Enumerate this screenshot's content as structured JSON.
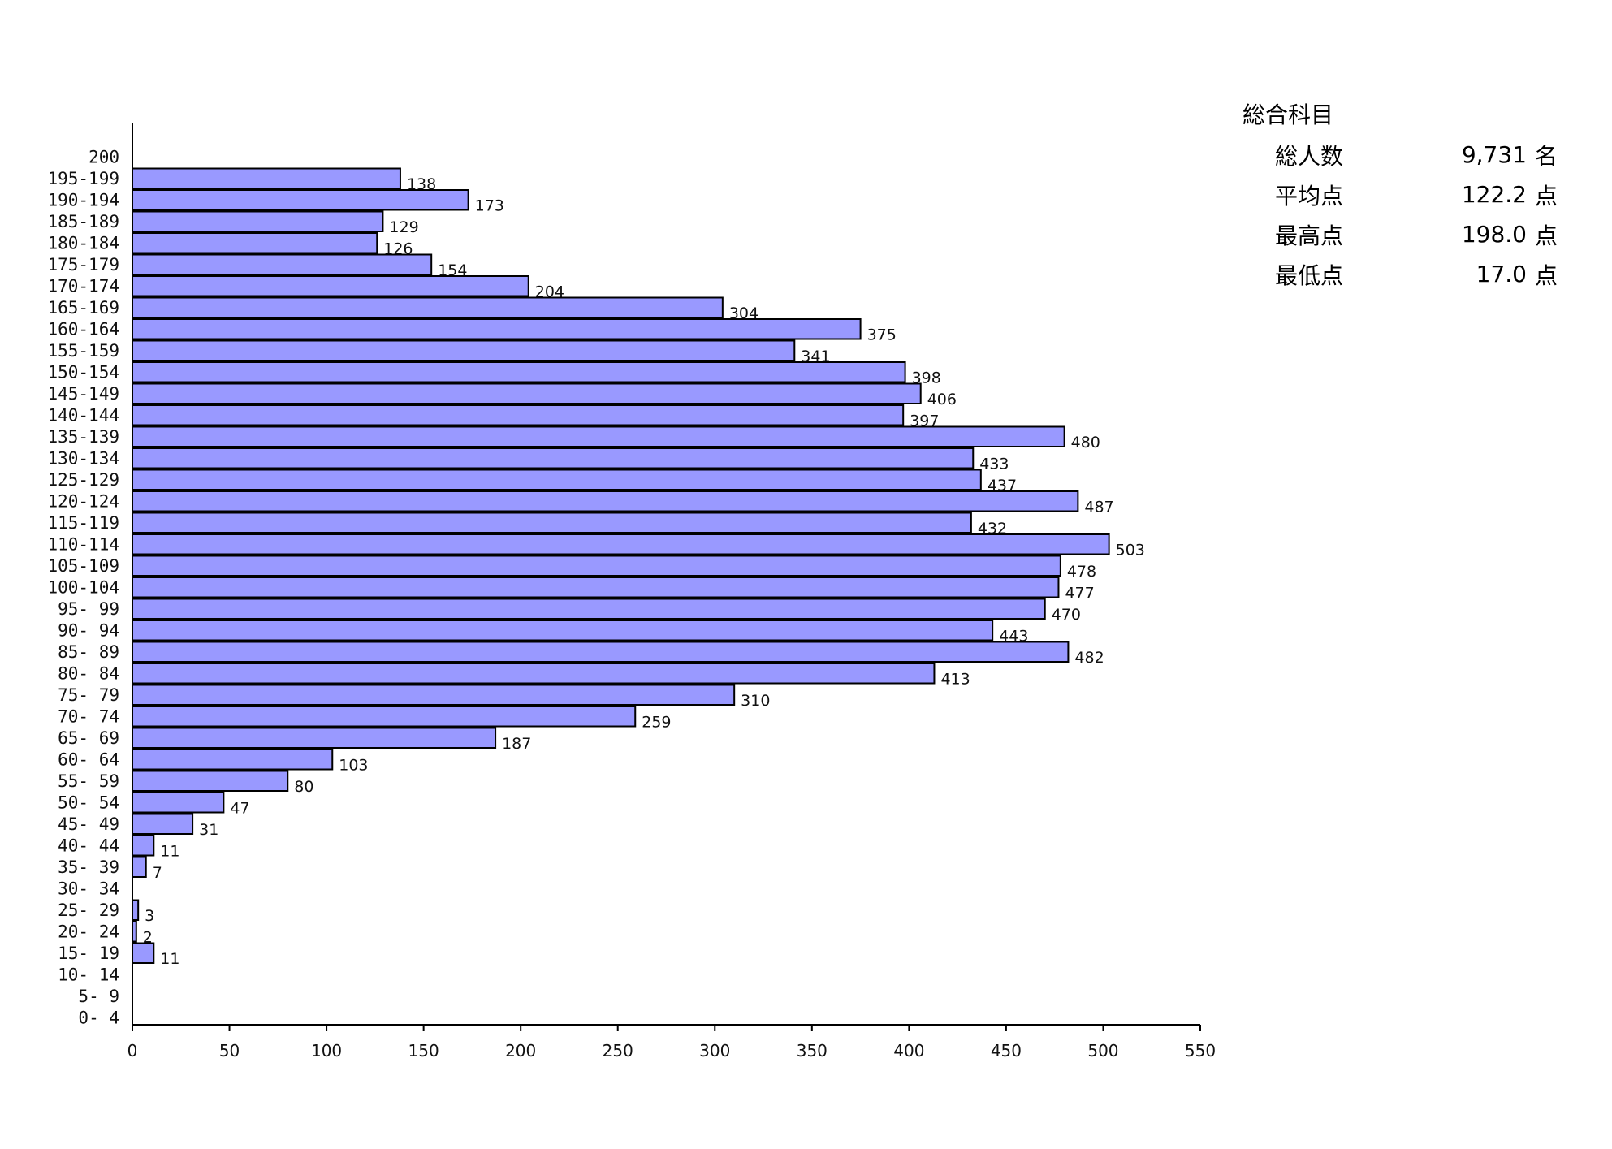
{
  "chart_data": {
    "type": "bar",
    "orientation": "horizontal",
    "title": "",
    "xlabel": "",
    "ylabel": "",
    "xlim": [
      0,
      550
    ],
    "x_ticks": [
      "0",
      "50",
      "100",
      "150",
      "200",
      "250",
      "300",
      "350",
      "400",
      "450",
      "500",
      "550"
    ],
    "grid": false,
    "categories": [
      "200",
      "195-199",
      "190-194",
      "185-189",
      "180-184",
      "175-179",
      "170-174",
      "165-169",
      "160-164",
      "155-159",
      "150-154",
      "145-149",
      "140-144",
      "135-139",
      "130-134",
      "125-129",
      "120-124",
      "115-119",
      "110-114",
      "105-109",
      "100-104",
      "95- 99",
      "90- 94",
      "85- 89",
      "80- 84",
      "75- 79",
      "70- 74",
      "65- 69",
      "60- 64",
      "55- 59",
      "50- 54",
      "45- 49",
      "40- 44",
      "35- 39",
      "30- 34",
      "25- 29",
      "20- 24",
      "15- 19",
      "10- 14",
      "5-  9",
      "0-  4"
    ],
    "values": [
      0,
      138,
      173,
      129,
      126,
      154,
      204,
      304,
      375,
      341,
      398,
      406,
      397,
      480,
      433,
      437,
      487,
      432,
      503,
      478,
      477,
      470,
      443,
      482,
      413,
      310,
      259,
      187,
      103,
      80,
      47,
      31,
      11,
      7,
      0,
      3,
      2,
      11,
      0,
      0,
      0
    ],
    "bar_color": "#9999ff",
    "edge_color": "#000000"
  },
  "summary": {
    "title": "総合科目",
    "rows": [
      {
        "label": "総人数",
        "value": "9,731",
        "unit": "名"
      },
      {
        "label": "平均点",
        "value": "122.2",
        "unit": "点"
      },
      {
        "label": "最高点",
        "value": "198.0",
        "unit": "点"
      },
      {
        "label": "最低点",
        "value": "17.0",
        "unit": "点"
      }
    ]
  }
}
